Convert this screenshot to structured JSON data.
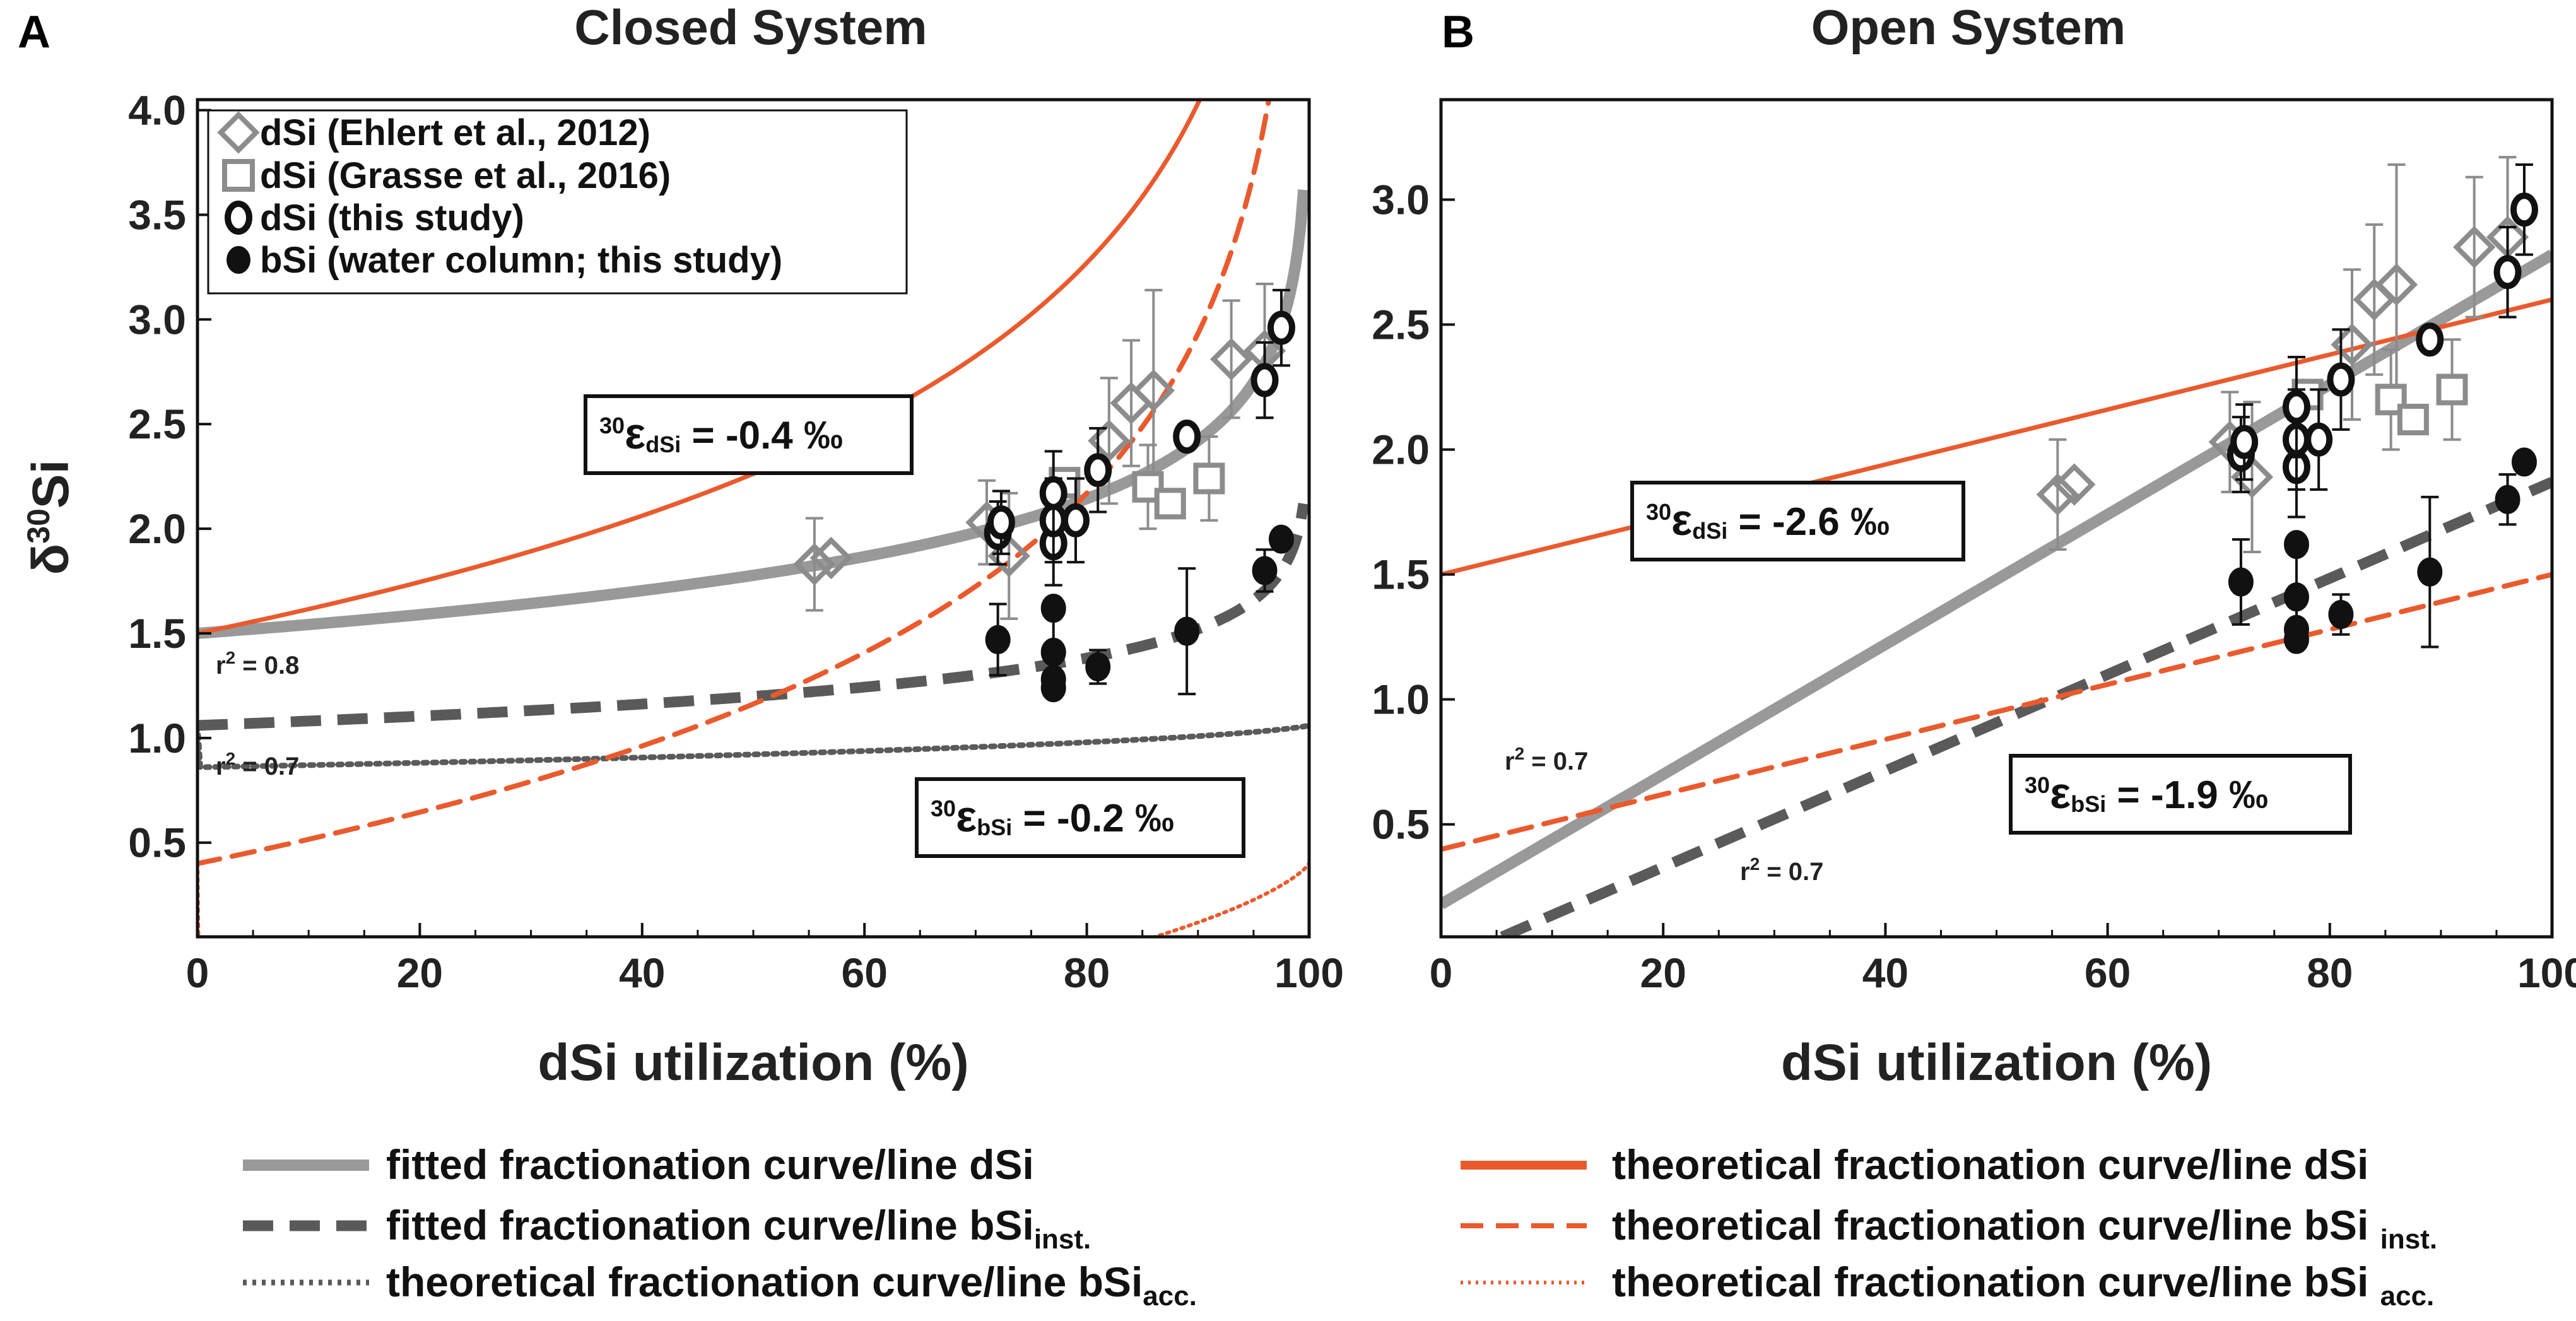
{
  "chart_data": [
    {
      "type": "scatter",
      "panel_label": "A",
      "title": "Closed System",
      "xlabel": "dSi utilization (%)",
      "ylabel": "δ30Si",
      "ylabel_prefix": "δ",
      "ylabel_sup": "30",
      "ylabel_main": "Si",
      "xlim": [
        0,
        100
      ],
      "ylim": [
        0.05,
        4.05
      ],
      "xticks": [
        0,
        20,
        40,
        60,
        80,
        100
      ],
      "yticks": [
        0.5,
        1.0,
        1.5,
        2.0,
        2.5,
        3.0,
        3.5,
        4.0
      ],
      "ytick_labels": [
        "0.5",
        "1.0",
        "1.5",
        "2.0",
        "2.5",
        "3.0",
        "3.5",
        "4.0"
      ],
      "legend": [
        {
          "label": "dSi (Ehlert et al., 2012)",
          "marker": "diamond"
        },
        {
          "label": "dSi (Grasse et al., 2016)",
          "marker": "square"
        },
        {
          "label": "dSi (this study)",
          "marker": "open-circle"
        },
        {
          "label": "bSi (water column; this study)",
          "marker": "filled-circle"
        }
      ],
      "series": [
        {
          "name": "dSi (Ehlert et al., 2012)",
          "marker": "diamond",
          "points": [
            {
              "x": 55.5,
              "y": 1.83,
              "err": 0.22
            },
            {
              "x": 57,
              "y": 1.86,
              "err": 0
            },
            {
              "x": 71,
              "y": 2.03,
              "err": 0.2
            },
            {
              "x": 73,
              "y": 1.87,
              "err": 0.3
            },
            {
              "x": 82,
              "y": 2.42,
              "err": 0.3
            },
            {
              "x": 84,
              "y": 2.6,
              "err": 0.3
            },
            {
              "x": 86,
              "y": 2.66,
              "err": 0.48
            },
            {
              "x": 93,
              "y": 2.81,
              "err": 0.28
            },
            {
              "x": 96,
              "y": 2.85,
              "err": 0.32
            }
          ]
        },
        {
          "name": "dSi (Grasse et al., 2016)",
          "marker": "square",
          "points": [
            {
              "x": 78,
              "y": 2.22,
              "err": 0
            },
            {
              "x": 85.5,
              "y": 2.2,
              "err": 0.2
            },
            {
              "x": 87.5,
              "y": 2.12,
              "err": 0
            },
            {
              "x": 91,
              "y": 2.24,
              "err": 0.2
            }
          ]
        },
        {
          "name": "dSi (this study)",
          "marker": "open-circle",
          "points": [
            {
              "x": 72,
              "y": 1.98,
              "err": 0.15
            },
            {
              "x": 72.3,
              "y": 2.03,
              "err": 0.15
            },
            {
              "x": 77,
              "y": 1.93,
              "err": 0.2
            },
            {
              "x": 77,
              "y": 2.04,
              "err": 0.2
            },
            {
              "x": 77,
              "y": 2.17,
              "err": 0.2
            },
            {
              "x": 79,
              "y": 2.04,
              "err": 0.2
            },
            {
              "x": 81,
              "y": 2.28,
              "err": 0.2
            },
            {
              "x": 89,
              "y": 2.44,
              "err": 0
            },
            {
              "x": 96,
              "y": 2.71,
              "err": 0.18
            },
            {
              "x": 97.5,
              "y": 2.96,
              "err": 0.18
            }
          ]
        },
        {
          "name": "bSi (water column; this study)",
          "marker": "filled-circle",
          "points": [
            {
              "x": 72,
              "y": 1.47,
              "err": 0.17
            },
            {
              "x": 77,
              "y": 1.62,
              "err": 0
            },
            {
              "x": 77,
              "y": 1.41,
              "err": 0.2
            },
            {
              "x": 77,
              "y": 1.28,
              "err": 0
            },
            {
              "x": 77,
              "y": 1.24,
              "err": 0
            },
            {
              "x": 81,
              "y": 1.34,
              "err": 0.08
            },
            {
              "x": 89,
              "y": 1.51,
              "err": 0.3
            },
            {
              "x": 96,
              "y": 1.8,
              "err": 0.1
            },
            {
              "x": 97.5,
              "y": 1.95,
              "err": 0
            }
          ]
        }
      ],
      "curves": [
        {
          "name": "fitted fractionation curve/line dSi",
          "style": "gray-solid",
          "eq": "closed_product",
          "y0": 1.5,
          "eps": 0.4,
          "xmax": 99.5
        },
        {
          "name": "fitted fractionation curve/line bSi inst.",
          "style": "gray-dash",
          "eq": "closed_product",
          "y0": 1.06,
          "eps": 0.2,
          "xmax": 99.5
        },
        {
          "name": "theoretical fractionation curve/line bSi acc.",
          "style": "gray-dot",
          "eq": "closed_acc",
          "y0": 1.06,
          "eps": 0.2,
          "xmax": 100
        },
        {
          "name": "theoretical fractionation curve/line dSi",
          "style": "orange-solid",
          "eq": "closed_product",
          "y0": 1.5,
          "eps": 1.1,
          "xmax": 99
        },
        {
          "name": "theoretical fractionation curve/line bSi inst.",
          "style": "orange-dash",
          "eq": "closed_product",
          "y0": 0.4,
          "eps": 1.1,
          "xmax": 99
        },
        {
          "name": "theoretical fractionation curve/line bSi acc.",
          "style": "orange-dot",
          "eq": "closed_acc",
          "y0": 0.4,
          "eps": 1.1,
          "xmax": 100
        }
      ],
      "annotations": {
        "r2_top": {
          "text": "r² = 0.8",
          "r": "r",
          "sup": "2",
          "val": " = 0.8"
        },
        "r2_bottom": {
          "text": "r² = 0.7",
          "r": "r",
          "sup": "2",
          "val": " = 0.7"
        },
        "eps_dsi": {
          "sup": "30",
          "eps": "ε",
          "sub": "dSi",
          "val": " = -0.4 ‰"
        },
        "eps_bsi": {
          "sup": "30",
          "eps": "ε",
          "sub": "bSi",
          "val": " = -0.2 ‰"
        }
      }
    },
    {
      "type": "scatter",
      "panel_label": "B",
      "title": "Open System",
      "xlabel": "dSi utilization (%)",
      "xlim": [
        0,
        100
      ],
      "ylim": [
        0.05,
        3.4
      ],
      "xticks": [
        0,
        20,
        40,
        60,
        80,
        100
      ],
      "yticks": [
        0.5,
        1.0,
        1.5,
        2.0,
        2.5,
        3.0
      ],
      "ytick_labels": [
        "0.5",
        "1.0",
        "1.5",
        "2.0",
        "2.5",
        "3.0"
      ],
      "series": [
        {
          "name": "dSi (Ehlert et al., 2012)",
          "marker": "diamond",
          "points": [
            {
              "x": 55.5,
              "y": 1.82,
              "err": 0.22
            },
            {
              "x": 57,
              "y": 1.86,
              "err": 0
            },
            {
              "x": 71,
              "y": 2.03,
              "err": 0.2
            },
            {
              "x": 73,
              "y": 1.89,
              "err": 0.3
            },
            {
              "x": 82,
              "y": 2.42,
              "err": 0.3
            },
            {
              "x": 84,
              "y": 2.6,
              "err": 0.3
            },
            {
              "x": 86,
              "y": 2.66,
              "err": 0.48
            },
            {
              "x": 93,
              "y": 2.81,
              "err": 0.28
            },
            {
              "x": 96,
              "y": 2.85,
              "err": 0.32
            }
          ]
        },
        {
          "name": "dSi (Grasse et al., 2016)",
          "marker": "square",
          "points": [
            {
              "x": 78,
              "y": 2.22,
              "err": 0
            },
            {
              "x": 85.5,
              "y": 2.2,
              "err": 0.2
            },
            {
              "x": 87.5,
              "y": 2.12,
              "err": 0
            },
            {
              "x": 91,
              "y": 2.24,
              "err": 0.2
            }
          ]
        },
        {
          "name": "dSi (this study)",
          "marker": "open-circle",
          "points": [
            {
              "x": 72,
              "y": 1.98,
              "err": 0.15
            },
            {
              "x": 72.3,
              "y": 2.03,
              "err": 0.15
            },
            {
              "x": 77,
              "y": 1.93,
              "err": 0.2
            },
            {
              "x": 77,
              "y": 2.04,
              "err": 0.2
            },
            {
              "x": 77,
              "y": 2.17,
              "err": 0.2
            },
            {
              "x": 79,
              "y": 2.04,
              "err": 0.2
            },
            {
              "x": 81,
              "y": 2.28,
              "err": 0.2
            },
            {
              "x": 89,
              "y": 2.44,
              "err": 0
            },
            {
              "x": 96,
              "y": 2.71,
              "err": 0.18
            },
            {
              "x": 97.5,
              "y": 2.96,
              "err": 0.18
            }
          ]
        },
        {
          "name": "bSi (water column; this study)",
          "marker": "filled-circle",
          "points": [
            {
              "x": 72,
              "y": 1.47,
              "err": 0.17
            },
            {
              "x": 77,
              "y": 1.62,
              "err": 0
            },
            {
              "x": 77,
              "y": 1.41,
              "err": 0.2
            },
            {
              "x": 77,
              "y": 1.28,
              "err": 0
            },
            {
              "x": 77,
              "y": 1.24,
              "err": 0
            },
            {
              "x": 81,
              "y": 1.34,
              "err": 0.08
            },
            {
              "x": 89,
              "y": 1.51,
              "err": 0.3
            },
            {
              "x": 96,
              "y": 1.8,
              "err": 0.1
            },
            {
              "x": 97.5,
              "y": 1.95,
              "err": 0
            }
          ]
        }
      ],
      "lines": [
        {
          "name": "fitted fractionation curve/line dSi",
          "style": "gray-solid",
          "x": [
            0,
            100
          ],
          "y": [
            0.18,
            2.78
          ]
        },
        {
          "name": "fitted fractionation curve/line bSi inst.",
          "style": "gray-dash",
          "x": [
            5.5,
            100
          ],
          "y": [
            0.05,
            1.87
          ]
        },
        {
          "name": "theoretical fractionation curve/line dSi",
          "style": "orange-solid",
          "x": [
            0,
            100
          ],
          "y": [
            1.5,
            2.6
          ]
        },
        {
          "name": "theoretical fractionation curve/line bSi inst.",
          "style": "orange-dash",
          "x": [
            0,
            100
          ],
          "y": [
            0.4,
            1.5
          ]
        }
      ],
      "annotations": {
        "r2_top": {
          "text": "r² = 0.7",
          "r": "r",
          "sup": "2",
          "val": " = 0.7"
        },
        "r2_bottom": {
          "text": "r² = 0.7",
          "r": "r",
          "sup": "2",
          "val": " = 0.7"
        },
        "eps_dsi": {
          "sup": "30",
          "eps": "ε",
          "sub": "dSi",
          "val": " = -2.6 ‰"
        },
        "eps_bsi": {
          "sup": "30",
          "eps": "ε",
          "sub": "bSi",
          "val": " = -1.9 ‰"
        }
      }
    }
  ],
  "legend_bottom": {
    "left": [
      {
        "style": "gray-solid",
        "text": "fitted fractionation curve/line dSi",
        "sub": ""
      },
      {
        "style": "gray-dash",
        "text": "fitted fractionation curve/line bSi",
        "sub": "inst."
      },
      {
        "style": "gray-dot",
        "text": "theoretical fractionation curve/line bSi",
        "sub": "acc."
      }
    ],
    "right": [
      {
        "style": "orange-solid",
        "text": "theoretical fractionation curve/line dSi",
        "sub": ""
      },
      {
        "style": "orange-dash",
        "text": "theoretical fractionation curve/line bSi ",
        "sub": "inst."
      },
      {
        "style": "orange-dot",
        "text": "theoretical fractionation curve/line bSi ",
        "sub": "acc."
      }
    ]
  },
  "colors": {
    "orange": "#ea5a2c",
    "gray_light": "#999999",
    "gray_dark": "#5a5a5a",
    "marker_gray": "#8c8c8c",
    "black": "#111111"
  }
}
